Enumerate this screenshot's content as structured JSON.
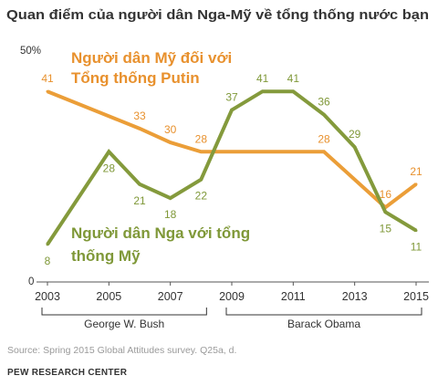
{
  "chart_data": {
    "type": "line",
    "title": "Quan điểm của người dân Nga-Mỹ về tổng thống nước bạn",
    "xlim": [
      2003,
      2015
    ],
    "ylim": [
      0,
      50
    ],
    "x_ticks": [
      "2003",
      "2005",
      "2007",
      "2009",
      "2011",
      "2013",
      "2015"
    ],
    "y_tick_labels": [
      "50%",
      "0"
    ],
    "grid": false,
    "series": [
      {
        "name_lines": [
          "Người dân Mỹ đối với",
          "Tổng thống Putin"
        ],
        "color": "#eb9e38",
        "label_color": "#e8912e",
        "x": [
          2003,
          2006,
          2007,
          2008,
          2012,
          2014,
          2015
        ],
        "y": [
          41,
          33,
          30,
          28,
          28,
          16,
          21
        ]
      },
      {
        "name_lines": [
          "Người dân Nga với tổng",
          "thống Mỹ"
        ],
        "color": "#849a3c",
        "label_color": "#7f9838",
        "x": [
          2003,
          2005,
          2006,
          2007,
          2008,
          2009,
          2010,
          2011,
          2012,
          2013,
          2014,
          2015
        ],
        "y": [
          8,
          28,
          21,
          18,
          22,
          37,
          41,
          41,
          36,
          29,
          15,
          11
        ]
      }
    ],
    "periods": [
      {
        "label": "George W. Bush",
        "from": 2003,
        "to": 2008
      },
      {
        "label": "Barack Obama",
        "from": 2009,
        "to": 2015
      }
    ]
  },
  "source": "Source: Spring 2015 Global Attitudes survey. Q25a, d.",
  "brand": "PEW RESEARCH CENTER"
}
